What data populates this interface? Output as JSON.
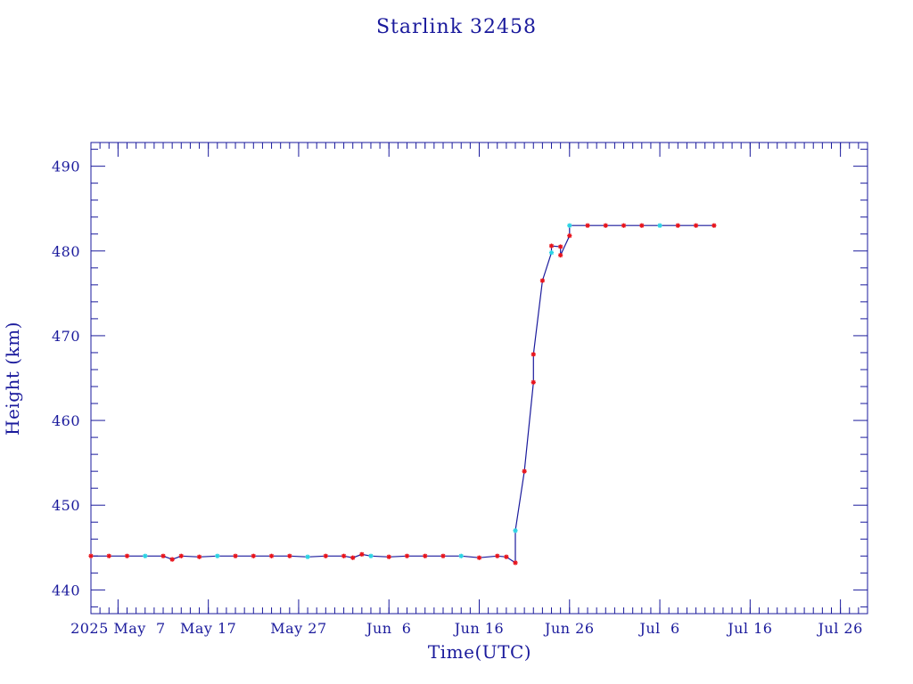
{
  "chart_data": {
    "type": "line",
    "title": "Starlink 32458",
    "xlabel": "Time(UTC)",
    "ylabel": "Height (km)",
    "x_axis": {
      "type": "date",
      "min": "2025-05-04",
      "max": "2025-07-29",
      "ticks": [
        {
          "date": "2025-05-07",
          "label": "2025 May  7"
        },
        {
          "date": "2025-05-17",
          "label": "May 17"
        },
        {
          "date": "2025-05-27",
          "label": "May 27"
        },
        {
          "date": "2025-06-06",
          "label": "Jun  6"
        },
        {
          "date": "2025-06-16",
          "label": "Jun 16"
        },
        {
          "date": "2025-06-26",
          "label": "Jun 26"
        },
        {
          "date": "2025-07-06",
          "label": "Jul  6"
        },
        {
          "date": "2025-07-16",
          "label": "Jul 16"
        },
        {
          "date": "2025-07-26",
          "label": "Jul 26"
        }
      ]
    },
    "y_axis": {
      "min": 437.2,
      "max": 492.8,
      "ticks": [
        440,
        450,
        460,
        470,
        480,
        490
      ]
    },
    "grid": false,
    "legend": "none",
    "series": [
      {
        "marker_colors": [
          "#e8141c",
          "#2ad4e4"
        ],
        "line_color": "#1a1a9c",
        "points": [
          [
            "2025-05-04",
            444.0
          ],
          [
            "2025-05-06",
            444.0
          ],
          [
            "2025-05-08",
            444.0
          ],
          [
            "2025-05-10",
            444.0
          ],
          [
            "2025-05-12",
            444.0
          ],
          [
            "2025-05-13",
            443.6
          ],
          [
            "2025-05-14",
            444.0
          ],
          [
            "2025-05-16",
            443.9
          ],
          [
            "2025-05-18",
            444.0
          ],
          [
            "2025-05-20",
            444.0
          ],
          [
            "2025-05-22",
            444.0
          ],
          [
            "2025-05-24",
            444.0
          ],
          [
            "2025-05-26",
            444.0
          ],
          [
            "2025-05-28",
            443.9
          ],
          [
            "2025-05-30",
            444.0
          ],
          [
            "2025-06-01",
            444.0
          ],
          [
            "2025-06-02",
            443.8
          ],
          [
            "2025-06-03",
            444.2
          ],
          [
            "2025-06-04",
            444.0
          ],
          [
            "2025-06-06",
            443.9
          ],
          [
            "2025-06-08",
            444.0
          ],
          [
            "2025-06-10",
            444.0
          ],
          [
            "2025-06-12",
            444.0
          ],
          [
            "2025-06-14",
            444.0
          ],
          [
            "2025-06-16",
            443.8
          ],
          [
            "2025-06-18",
            444.0
          ],
          [
            "2025-06-19",
            443.9
          ],
          [
            "2025-06-20",
            443.2
          ],
          [
            "2025-06-20",
            447.0
          ],
          [
            "2025-06-21",
            454.0
          ],
          [
            "2025-06-22",
            464.5
          ],
          [
            "2025-06-22",
            467.8
          ],
          [
            "2025-06-23",
            476.5
          ],
          [
            "2025-06-24",
            479.8
          ],
          [
            "2025-06-24",
            480.6
          ],
          [
            "2025-06-25",
            480.5
          ],
          [
            "2025-06-25",
            479.5
          ],
          [
            "2025-06-26",
            481.8
          ],
          [
            "2025-06-26",
            483.0
          ],
          [
            "2025-06-28",
            483.0
          ],
          [
            "2025-06-30",
            483.0
          ],
          [
            "2025-07-02",
            483.0
          ],
          [
            "2025-07-04",
            483.0
          ],
          [
            "2025-07-06",
            483.0
          ],
          [
            "2025-07-08",
            483.0
          ],
          [
            "2025-07-10",
            483.0
          ],
          [
            "2025-07-12",
            483.0
          ]
        ]
      }
    ]
  }
}
